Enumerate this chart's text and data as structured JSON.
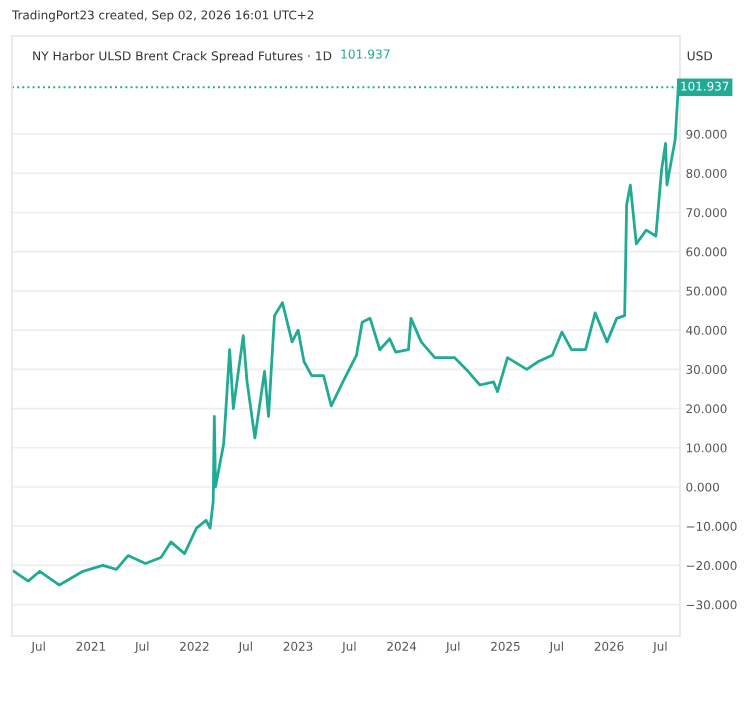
{
  "chart_data": {
    "type": "line",
    "title": "NY Harbor ULSD Brent Crack Spread Futures · 1D",
    "annotations": [
      "TradingPort23 created, Sep 02, 2026 16:01 UTC+2",
      "101.937",
      "USD"
    ],
    "x": [
      "2020-04-05",
      "2020-05-25",
      "2020-07-05",
      "2020-09-12",
      "2020-12-04",
      "2021-02-12",
      "2021-04-01",
      "2021-05-12",
      "2021-07-12",
      "2021-09-05",
      "2021-10-10",
      "2021-11-27",
      "2022-01-08",
      "2022-02-11",
      "2022-02-25",
      "2022-03-08",
      "2022-03-12",
      "2022-03-16",
      "2022-04-14",
      "2022-05-05",
      "2022-05-18",
      "2022-06-22",
      "2022-07-05",
      "2022-08-02",
      "2022-09-05",
      "2022-09-19",
      "2022-10-10",
      "2022-11-07",
      "2022-12-11",
      "2023-01-01",
      "2023-01-22",
      "2023-02-18",
      "2023-04-01",
      "2023-04-28",
      "2023-06-08",
      "2023-07-26",
      "2023-08-15",
      "2023-09-12",
      "2023-10-16",
      "2023-11-20",
      "2023-12-11",
      "2024-01-25",
      "2024-02-03",
      "2024-03-10",
      "2024-04-27",
      "2024-07-05",
      "2024-08-22",
      "2024-10-03",
      "2024-11-20",
      "2024-12-04",
      "2025-01-08",
      "2025-03-17",
      "2025-04-27",
      "2025-06-15",
      "2025-07-19",
      "2025-08-22",
      "2025-10-10",
      "2025-11-13",
      "2025-12-25",
      "2026-01-28",
      "2026-02-25",
      "2026-03-04",
      "2026-03-17",
      "2026-04-07",
      "2026-05-12",
      "2026-06-15",
      "2026-07-05",
      "2026-07-19",
      "2026-07-24",
      "2026-08-22",
      "2026-09-02"
    ],
    "series": [
      {
        "color": "#22ab94",
        "values": [
          -21.5,
          -24,
          -21.5,
          -25,
          -21.5,
          -20,
          -21,
          -17.5,
          -19.5,
          -18,
          -14,
          -17,
          -10.5,
          -8.5,
          -10.5,
          -3.7,
          18,
          0,
          11,
          35,
          20,
          38.6,
          27,
          12.5,
          29.5,
          18,
          43.7,
          47,
          37,
          40,
          32,
          28.4,
          28.4,
          20.7,
          26.8,
          33.6,
          42,
          43,
          35,
          37.8,
          34.4,
          35,
          43,
          37,
          33,
          33,
          29.5,
          26,
          26.8,
          24.3,
          33,
          30,
          32,
          33.6,
          39.5,
          35,
          35,
          44.4,
          37,
          43,
          43.7,
          72,
          77,
          62,
          65.5,
          64,
          80.8,
          87.6,
          77,
          88.6,
          101.937
        ]
      }
    ],
    "xlim": [
      "2020-03-29",
      "2026-09-08"
    ],
    "xticks": [
      {
        "value": "2020-07-01",
        "label": "Jul"
      },
      {
        "value": "2021-01-01",
        "label": "2021"
      },
      {
        "value": "2021-07-01",
        "label": "Jul"
      },
      {
        "value": "2022-01-01",
        "label": "2022"
      },
      {
        "value": "2022-07-01",
        "label": "Jul"
      },
      {
        "value": "2023-01-01",
        "label": "2023"
      },
      {
        "value": "2023-07-01",
        "label": "Jul"
      },
      {
        "value": "2024-01-01",
        "label": "2024"
      },
      {
        "value": "2024-07-01",
        "label": "Jul"
      },
      {
        "value": "2025-01-01",
        "label": "2025"
      },
      {
        "value": "2025-07-01",
        "label": "Jul"
      },
      {
        "value": "2026-01-01",
        "label": "2026"
      },
      {
        "value": "2026-07-01",
        "label": "Jul"
      }
    ],
    "ylim": [
      -38,
      115
    ],
    "yticks": [
      {
        "value": -30,
        "label": "−30.000"
      },
      {
        "value": -20,
        "label": "−20.000"
      },
      {
        "value": -10,
        "label": "−10.000"
      },
      {
        "value": 0,
        "label": "0.000"
      },
      {
        "value": 10,
        "label": "10.000"
      },
      {
        "value": 20,
        "label": "20.000"
      },
      {
        "value": 30,
        "label": "30.000"
      },
      {
        "value": 40,
        "label": "40.000"
      },
      {
        "value": 50,
        "label": "50.000"
      },
      {
        "value": 60,
        "label": "60.000"
      },
      {
        "value": 70,
        "label": "70.000"
      },
      {
        "value": 80,
        "label": "80.000"
      },
      {
        "value": 90,
        "label": "90.000"
      }
    ],
    "ref_lines": [
      {
        "axis": "y",
        "value": 101.937,
        "label": "101.937",
        "color": "#22ab94",
        "line_style": "dotted"
      }
    ],
    "grid": "y",
    "marker": "none",
    "line_style": "solid"
  }
}
